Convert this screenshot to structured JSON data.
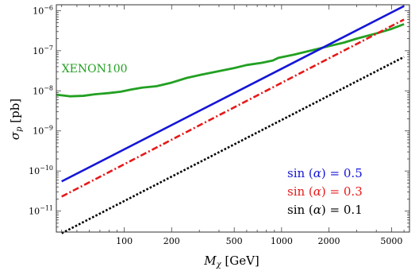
{
  "chart_data": {
    "type": "line",
    "xlabel_main": "M",
    "xlabel_sub": "χ",
    "xlabel_unit": " [GeV]",
    "ylabel_main": "σ",
    "ylabel_sub": "p",
    "ylabel_unit": " [pb]",
    "xscale": "log",
    "yscale": "log",
    "xlim": [
      37,
      6500
    ],
    "ylim": [
      3e-12,
      1.4e-06
    ],
    "grid": false,
    "x_ticks": [
      {
        "value": 100,
        "label": "100"
      },
      {
        "value": 200,
        "label": "200"
      },
      {
        "value": 500,
        "label": "500"
      },
      {
        "value": 1000,
        "label": "1000"
      },
      {
        "value": 2000,
        "label": "2000"
      },
      {
        "value": 5000,
        "label": "5000"
      }
    ],
    "y_ticks": [
      {
        "value": 1e-11,
        "base": "10",
        "exp": "−11"
      },
      {
        "value": 1e-10,
        "base": "10",
        "exp": "−10"
      },
      {
        "value": 1e-09,
        "base": "10",
        "exp": "−9"
      },
      {
        "value": 1e-08,
        "base": "10",
        "exp": "−8"
      },
      {
        "value": 1e-07,
        "base": "10",
        "exp": "−7"
      },
      {
        "value": 1e-06,
        "base": "10",
        "exp": "−6"
      }
    ],
    "annotation": {
      "text": "XENON100",
      "x": 40,
      "y": 3.6e-08,
      "color": "#22a022"
    },
    "legend_position": "bottom-right",
    "series": [
      {
        "name": "XENON100",
        "color": "#22a022",
        "style": "solid",
        "width": 2.8,
        "x": [
          37,
          45,
          55,
          65,
          80,
          95,
          110,
          130,
          160,
          200,
          250,
          320,
          400,
          500,
          600,
          750,
          880,
          950,
          1200,
          1600,
          2000,
          2500,
          3000,
          4000,
          5000,
          6000
        ],
        "y": [
          8e-09,
          7.3e-09,
          7.5e-09,
          8.2e-09,
          8.8e-09,
          9.5e-09,
          1.07e-08,
          1.2e-08,
          1.3e-08,
          1.6e-08,
          2.1e-08,
          2.6e-08,
          3.1e-08,
          3.7e-08,
          4.4e-08,
          5e-08,
          5.7e-08,
          6.6e-08,
          8e-08,
          1.05e-07,
          1.3e-07,
          1.6e-07,
          2e-07,
          2.7e-07,
          3.5e-07,
          4.6e-07
        ]
      },
      {
        "name": "sin (α) = 0.5",
        "label_prefix": "sin (",
        "label_symbol": "α",
        "label_suffix": ") = 0.5",
        "color": "#1515d8",
        "style": "solid",
        "width": 2.6,
        "x": [
          40,
          6000
        ],
        "y": [
          5.5e-11,
          1.3e-06
        ]
      },
      {
        "name": "sin (α) = 0.3",
        "label_prefix": "sin (",
        "label_symbol": "α",
        "label_suffix": ") = 0.3",
        "color": "#e61919",
        "style": "dashdot",
        "width": 2.6,
        "x": [
          40,
          6000
        ],
        "y": [
          2.3e-11,
          6e-07
        ]
      },
      {
        "name": "sin (α) = 0.1",
        "label_prefix": "sin (",
        "label_symbol": "α",
        "label_suffix": ") = 0.1",
        "color": "#000000",
        "style": "dotted",
        "width": 2.6,
        "x": [
          40,
          6000
        ],
        "y": [
          2.8e-12,
          7e-08
        ]
      }
    ]
  }
}
